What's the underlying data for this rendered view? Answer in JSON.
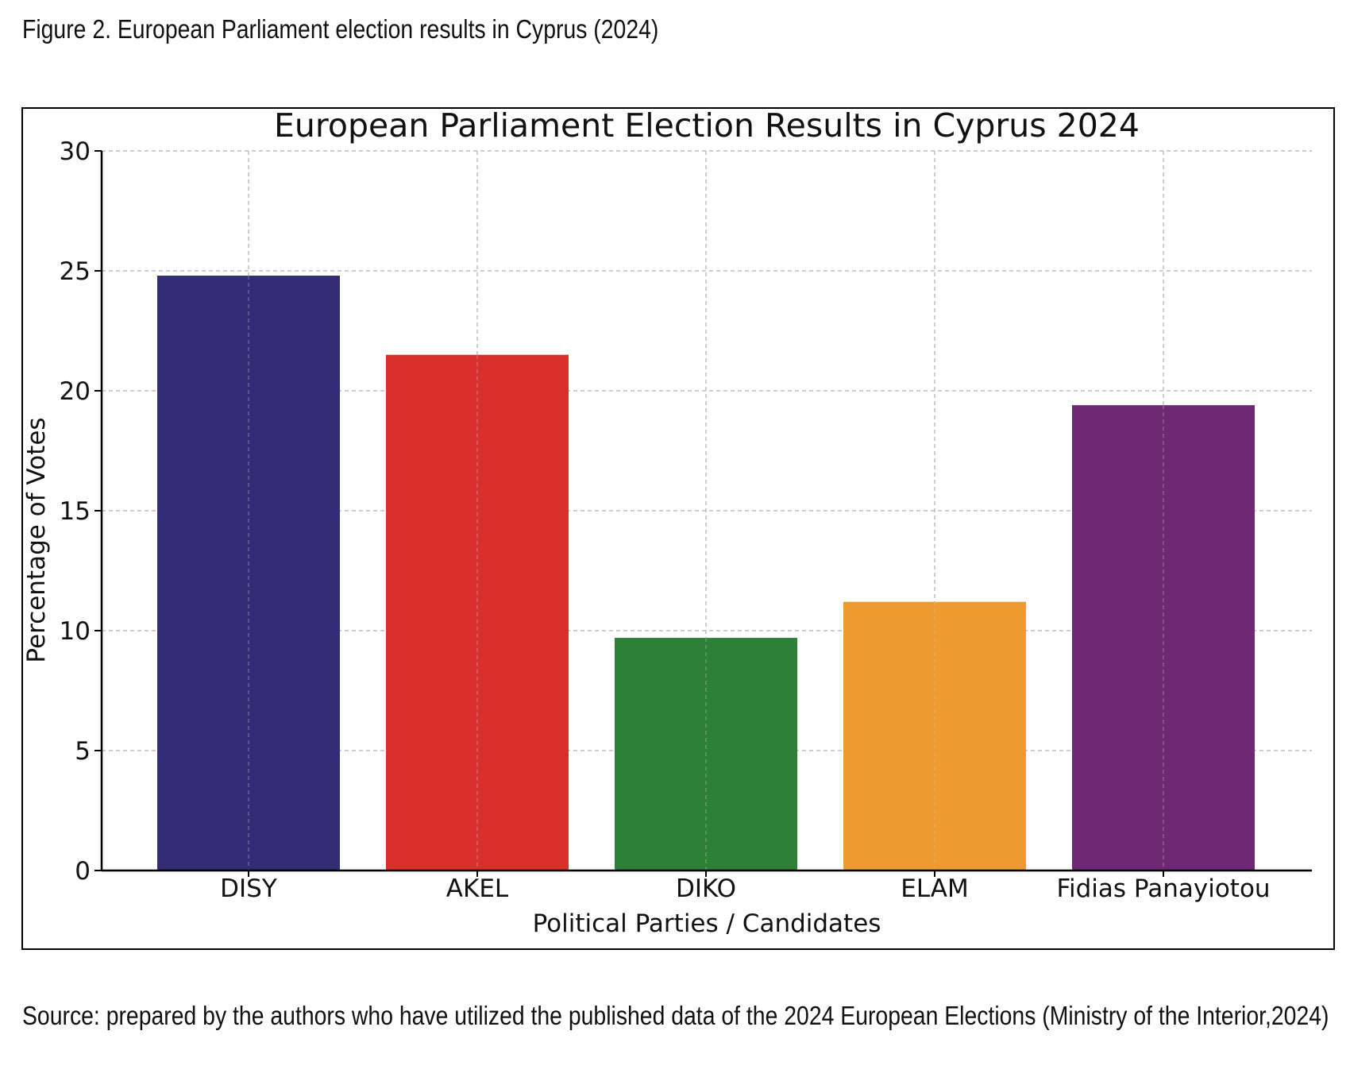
{
  "figure": {
    "caption": "Figure 2. European Parliament election results in Cyprus (2024)",
    "source": "Source: prepared by the authors who have utilized the published data of the 2024 European Elections (Ministry of the Interior,2024)"
  },
  "chart_data": {
    "type": "bar",
    "title": "European Parliament Election Results in Cyprus 2024",
    "xlabel": "Political Parties / Candidates",
    "ylabel": "Percentage of Votes",
    "categories": [
      "DISY",
      "AKEL",
      "DIKO",
      "ELAM",
      "Fidias Panayiotou"
    ],
    "values": [
      24.8,
      21.5,
      9.7,
      11.2,
      19.4
    ],
    "colors": [
      "#332c74",
      "#d8302b",
      "#2e8038",
      "#ef9a2f",
      "#6e2874"
    ],
    "ylim": [
      0,
      30
    ],
    "yticks": [
      0,
      5,
      10,
      15,
      20,
      25,
      30
    ],
    "grid": true
  }
}
